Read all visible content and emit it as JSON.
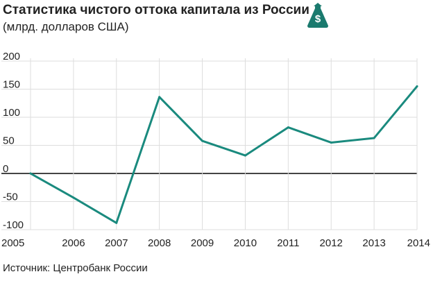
{
  "header": {
    "title": "Статистика чистого оттока капитала из России",
    "subtitle": "(млрд. долларов США)",
    "icon": "money-bag-icon",
    "icon_color": "#1a7a6e"
  },
  "source": "Источник: Центробанк России",
  "chart_data": {
    "type": "line",
    "title": "Статистика чистого оттока капитала из России",
    "ylabel": "(млрд. долларов США)",
    "categories": [
      "2005",
      "2006",
      "2007",
      "2008",
      "2009",
      "2010",
      "2011",
      "2012",
      "2013",
      "2014"
    ],
    "x": [
      2005,
      2006,
      2007,
      2008,
      2009,
      2010,
      2011,
      2012,
      2013,
      2014
    ],
    "series": [
      {
        "values": [
          0,
          -43,
          -88,
          136,
          58,
          32,
          82,
          55,
          63,
          155
        ],
        "color": "#1a8a7e"
      }
    ],
    "ylim": [
      -100,
      200
    ],
    "yticks": [
      "200",
      "150",
      "100",
      "50",
      "0",
      "-50",
      "-100"
    ],
    "ytick_values": [
      200,
      150,
      100,
      50,
      0,
      -50,
      -100
    ],
    "grid": true,
    "zero_line_color": "#444444",
    "grid_color": "#dddddd"
  }
}
